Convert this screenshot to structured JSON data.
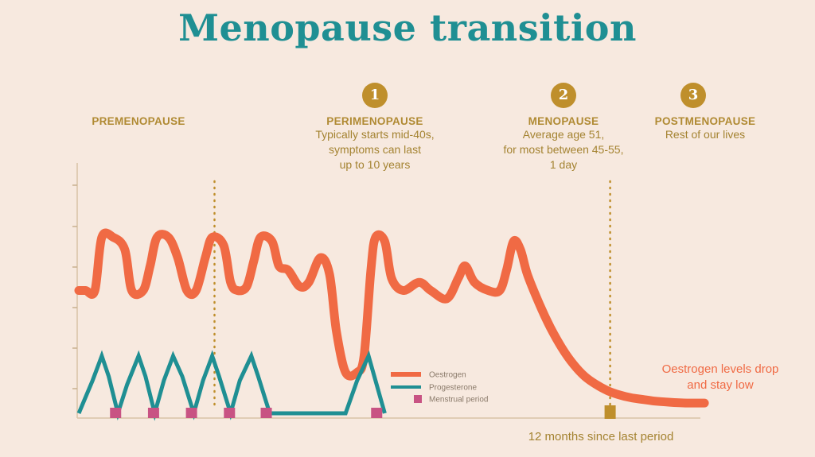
{
  "title": "Menopause transition",
  "stages": [
    {
      "number": "",
      "name": "PREMENOPAUSE",
      "desc": []
    },
    {
      "number": "1",
      "name": "PERIMENOPAUSE",
      "desc": [
        "Typically starts mid-40s,",
        "symptoms can last",
        "up to 10 years"
      ]
    },
    {
      "number": "2",
      "name": "MENOPAUSE",
      "desc": [
        "Average age 51,",
        "for most between 45-55,",
        "1 day"
      ]
    },
    {
      "number": "3",
      "name": "POSTMENOPAUSE",
      "desc": [
        "Rest of our lives"
      ]
    }
  ],
  "annotations": {
    "oestrogen_end": "Oestrogen levels drop and stay low",
    "last_period": "12 months since last period"
  },
  "colors": {
    "oestrogen": "#f06a44",
    "progesterone": "#1f8f93",
    "menstrual": "#c85383",
    "gold": "#bf8f2c"
  },
  "chart_data": {
    "type": "line",
    "title": "Menopause transition",
    "xlabel": "",
    "ylabel": "",
    "legend": "inside, lower-middle",
    "grid": false,
    "series": [
      {
        "name": "Oestrogen",
        "points": [
          [
            0,
            3.0
          ],
          [
            0.3,
            3.0
          ],
          [
            0.7,
            3.0
          ],
          [
            1.0,
            4.3
          ],
          [
            1.5,
            4.3
          ],
          [
            2.0,
            4.0
          ],
          [
            2.3,
            3.0
          ],
          [
            2.8,
            3.0
          ],
          [
            3.1,
            3.6
          ],
          [
            3.4,
            4.3
          ],
          [
            3.9,
            4.3
          ],
          [
            4.3,
            3.8
          ],
          [
            4.7,
            3.0
          ],
          [
            5.1,
            3.0
          ],
          [
            5.5,
            3.8
          ],
          [
            5.8,
            4.3
          ],
          [
            6.3,
            4.1
          ],
          [
            6.6,
            3.2
          ],
          [
            6.9,
            3.0
          ],
          [
            7.3,
            3.1
          ],
          [
            7.6,
            3.7
          ],
          [
            7.9,
            4.3
          ],
          [
            8.4,
            4.2
          ],
          [
            8.7,
            3.6
          ],
          [
            9.1,
            3.5
          ],
          [
            9.6,
            3.1
          ],
          [
            10.0,
            3.2
          ],
          [
            10.5,
            3.8
          ],
          [
            10.9,
            3.4
          ],
          [
            11.2,
            2.0
          ],
          [
            11.6,
            1.0
          ],
          [
            12.1,
            1.0
          ],
          [
            12.4,
            1.4
          ],
          [
            12.7,
            3.5
          ],
          [
            12.9,
            4.3
          ],
          [
            13.3,
            4.2
          ],
          [
            13.6,
            3.3
          ],
          [
            14.1,
            3.0
          ],
          [
            14.8,
            3.2
          ],
          [
            15.3,
            3.0
          ],
          [
            16.0,
            2.8
          ],
          [
            16.5,
            3.3
          ],
          [
            16.8,
            3.6
          ],
          [
            17.2,
            3.2
          ],
          [
            17.8,
            3.0
          ],
          [
            18.3,
            3.0
          ],
          [
            18.6,
            3.5
          ],
          [
            18.9,
            4.2
          ],
          [
            19.2,
            4.0
          ],
          [
            19.5,
            3.4
          ],
          [
            20.0,
            2.7
          ],
          [
            20.5,
            2.1
          ],
          [
            21.0,
            1.6
          ],
          [
            21.5,
            1.2
          ],
          [
            22.0,
            0.9
          ],
          [
            22.5,
            0.7
          ],
          [
            23.0,
            0.55
          ],
          [
            23.5,
            0.45
          ],
          [
            24.0,
            0.38
          ],
          [
            24.5,
            0.34
          ],
          [
            25.0,
            0.3
          ],
          [
            25.7,
            0.27
          ],
          [
            26.5,
            0.25
          ],
          [
            27.2,
            0.25
          ]
        ]
      },
      {
        "name": "Progesterone",
        "points": [
          [
            0,
            0
          ],
          [
            0.6,
            0.8
          ],
          [
            1.0,
            1.4
          ],
          [
            1.3,
            0.9
          ],
          [
            1.7,
            0
          ],
          [
            2.1,
            0.7
          ],
          [
            2.6,
            1.4
          ],
          [
            2.9,
            0.9
          ],
          [
            3.3,
            0
          ],
          [
            3.7,
            0.8
          ],
          [
            4.1,
            1.4
          ],
          [
            4.5,
            0.9
          ],
          [
            5.0,
            0
          ],
          [
            5.4,
            0.8
          ],
          [
            5.8,
            1.4
          ],
          [
            6.1,
            0.9
          ],
          [
            6.6,
            0
          ],
          [
            7.0,
            0.8
          ],
          [
            7.5,
            1.4
          ],
          [
            7.8,
            0.9
          ],
          [
            8.3,
            0
          ],
          [
            11.6,
            0
          ],
          [
            12.1,
            0.8
          ],
          [
            12.6,
            1.4
          ],
          [
            12.9,
            0.8
          ],
          [
            13.3,
            0
          ]
        ]
      }
    ],
    "menstrual_periods": [
      1.6,
      3.25,
      4.9,
      6.55,
      8.15,
      12.95
    ],
    "last_period_marker": 23.1,
    "legend_labels": [
      "Oestrogen",
      "Progesterone",
      "Menstrual period"
    ],
    "stage_boundaries": [
      5.9,
      23.1
    ]
  }
}
